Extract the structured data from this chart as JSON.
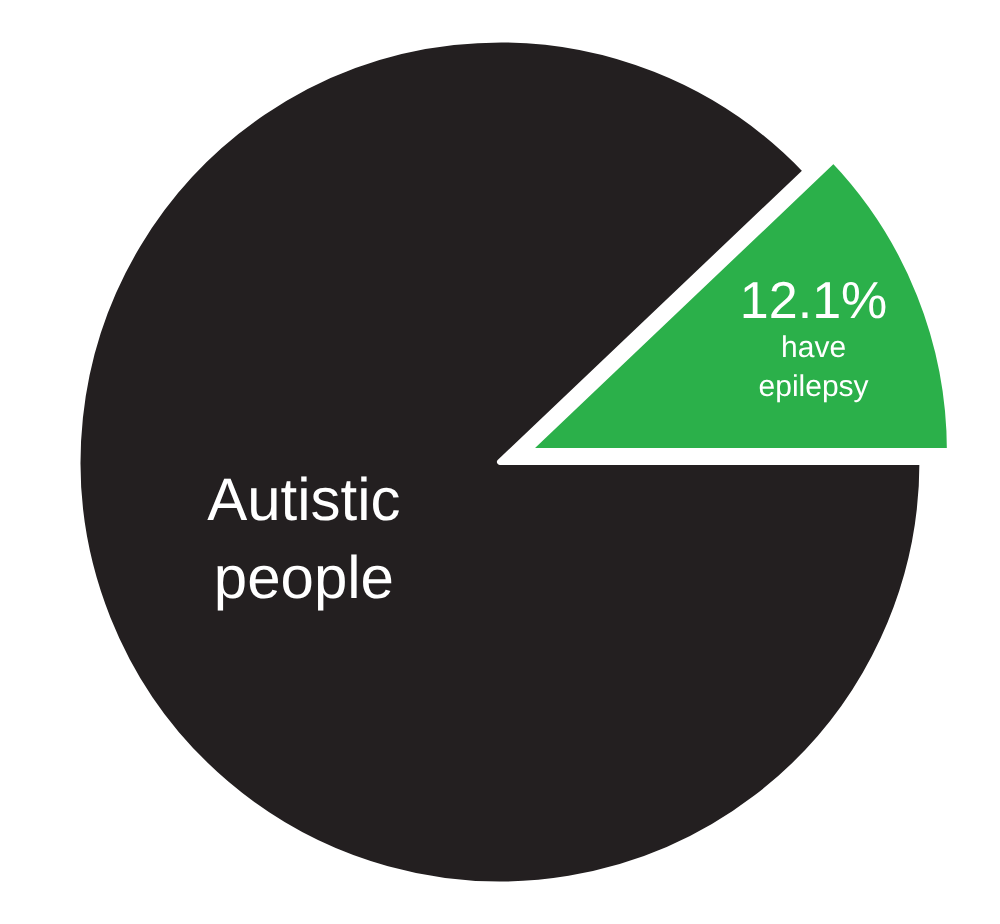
{
  "chart_data": {
    "type": "pie",
    "categories": [
      "Autistic people",
      "have epilepsy"
    ],
    "values": [
      87.9,
      12.1
    ],
    "colors": [
      "#231f20",
      "#2bb04a"
    ],
    "value_labels": [
      null,
      "12.1%"
    ],
    "legend": false
  }
}
